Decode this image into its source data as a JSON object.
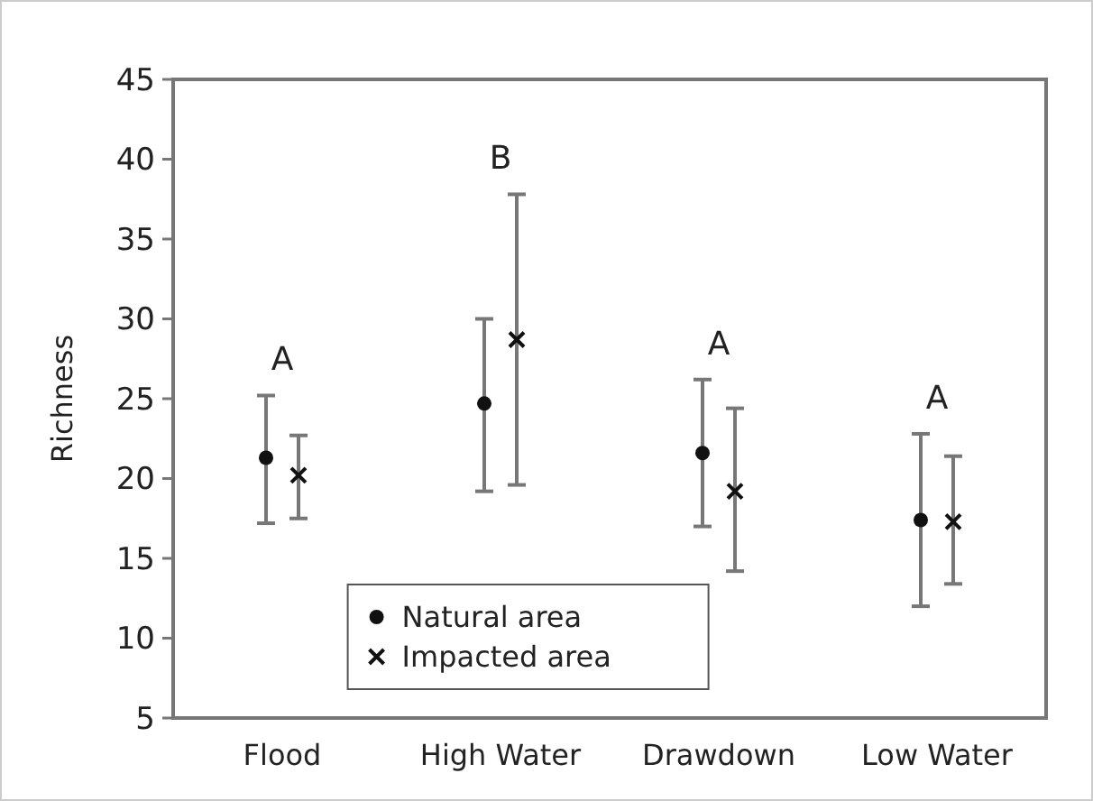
{
  "chart_data": {
    "type": "scatter",
    "ylabel": "Richness",
    "categories": [
      "Flood",
      "High Water",
      "Drawdown",
      "Low Water"
    ],
    "ylim": [
      5,
      45
    ],
    "yticks": [
      5,
      10,
      15,
      20,
      25,
      30,
      35,
      40,
      45
    ],
    "legend": "bottom",
    "grid": false,
    "series": [
      {
        "name": "Natural area",
        "color": "#111111",
        "marker": "circle",
        "values": [
          21.3,
          24.7,
          21.6,
          17.4
        ],
        "errors": [
          [
            17.2,
            25.2
          ],
          [
            19.2,
            30
          ],
          [
            17,
            26.2
          ],
          [
            12,
            22.8
          ]
        ]
      },
      {
        "name": "Impacted area",
        "color": "#111111",
        "marker": "cross",
        "values": [
          20.2,
          28.7,
          19.2,
          17.3
        ],
        "errors": [
          [
            17.5,
            22.7
          ],
          [
            19.6,
            37.8
          ],
          [
            14.2,
            24.4
          ],
          [
            13.4,
            21.4
          ]
        ]
      }
    ],
    "annotations": [
      "A",
      "B",
      "A",
      "A"
    ]
  }
}
